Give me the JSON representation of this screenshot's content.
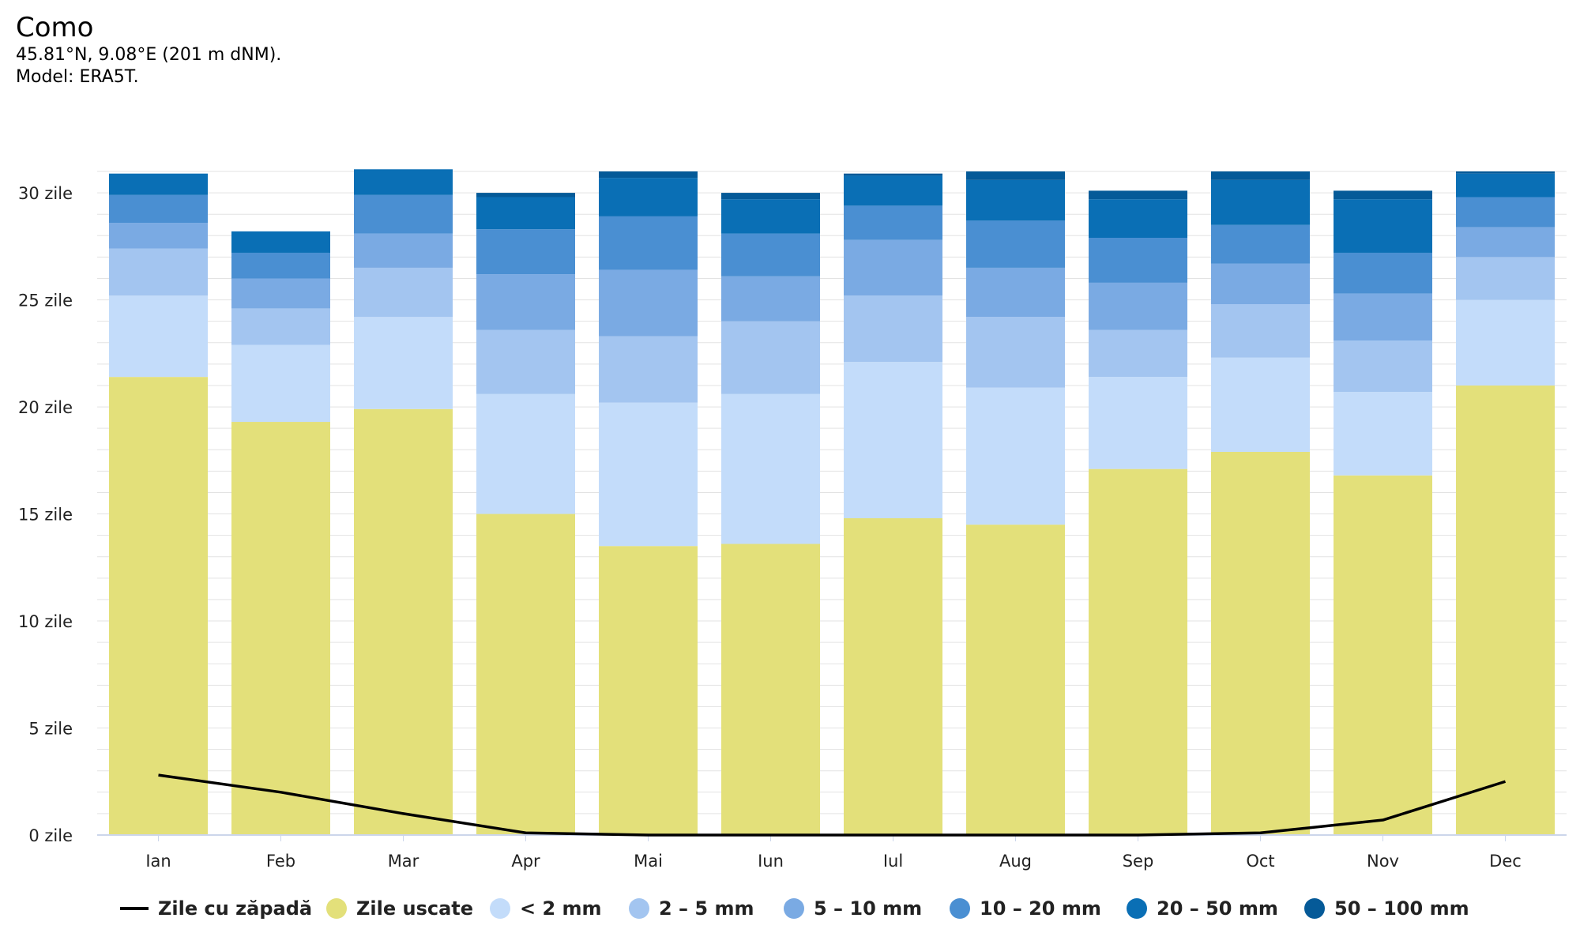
{
  "header": {
    "title": "Como",
    "coords": "45.81°N, 9.08°E (201 m dNM).",
    "model": "Model: ERA5T."
  },
  "chart_data": {
    "type": "bar",
    "stacked": true,
    "categories": [
      "Ian",
      "Feb",
      "Mar",
      "Apr",
      "Mai",
      "Iun",
      "Iul",
      "Aug",
      "Sep",
      "Oct",
      "Nov",
      "Dec"
    ],
    "ylim": [
      0,
      31
    ],
    "yticks": [
      {
        "value": 0,
        "label": "0 zile"
      },
      {
        "value": 5,
        "label": "5 zile"
      },
      {
        "value": 10,
        "label": "10 zile"
      },
      {
        "value": 15,
        "label": "15 zile"
      },
      {
        "value": 20,
        "label": "20 zile"
      },
      {
        "value": 25,
        "label": "25 zile"
      },
      {
        "value": 30,
        "label": "30 zile"
      }
    ],
    "series": [
      {
        "name": "Zile uscate",
        "color": "#e3e07a",
        "values": [
          21.4,
          19.3,
          19.9,
          15.0,
          13.5,
          13.6,
          14.8,
          14.5,
          17.1,
          17.9,
          16.8,
          21.0
        ]
      },
      {
        "name": "< 2 mm",
        "color": "#c3dcfa",
        "values": [
          3.8,
          3.6,
          4.3,
          5.6,
          6.7,
          7.0,
          7.3,
          6.4,
          4.3,
          4.4,
          3.9,
          4.0
        ]
      },
      {
        "name": "2 – 5 mm",
        "color": "#a3c5f0",
        "values": [
          2.2,
          1.7,
          2.3,
          3.0,
          3.1,
          3.4,
          3.1,
          3.3,
          2.2,
          2.5,
          2.4,
          2.0
        ]
      },
      {
        "name": "5 – 10 mm",
        "color": "#7aaae3",
        "values": [
          1.2,
          1.4,
          1.6,
          2.6,
          3.1,
          2.1,
          2.6,
          2.3,
          2.2,
          1.9,
          2.2,
          1.4
        ]
      },
      {
        "name": "10 – 20 mm",
        "color": "#4a8fd2",
        "values": [
          1.3,
          1.2,
          1.8,
          2.1,
          2.5,
          2.0,
          1.6,
          2.2,
          2.1,
          1.8,
          1.9,
          1.4
        ]
      },
      {
        "name": "20 – 50 mm",
        "color": "#0a6fb5",
        "values": [
          1.0,
          1.0,
          1.2,
          1.5,
          1.8,
          1.6,
          1.4,
          1.9,
          1.8,
          2.1,
          2.5,
          1.1
        ]
      },
      {
        "name": "50 – 100 mm",
        "color": "#055a98",
        "values": [
          0.0,
          0.0,
          0.0,
          0.2,
          0.3,
          0.3,
          0.1,
          0.4,
          0.4,
          0.4,
          0.4,
          0.1
        ]
      }
    ],
    "line": {
      "name": "Zile cu zăpadă",
      "color": "#000000",
      "values": [
        2.8,
        2.0,
        1.0,
        0.1,
        0.0,
        0.0,
        0.0,
        0.0,
        0.0,
        0.1,
        0.7,
        2.5
      ]
    }
  }
}
